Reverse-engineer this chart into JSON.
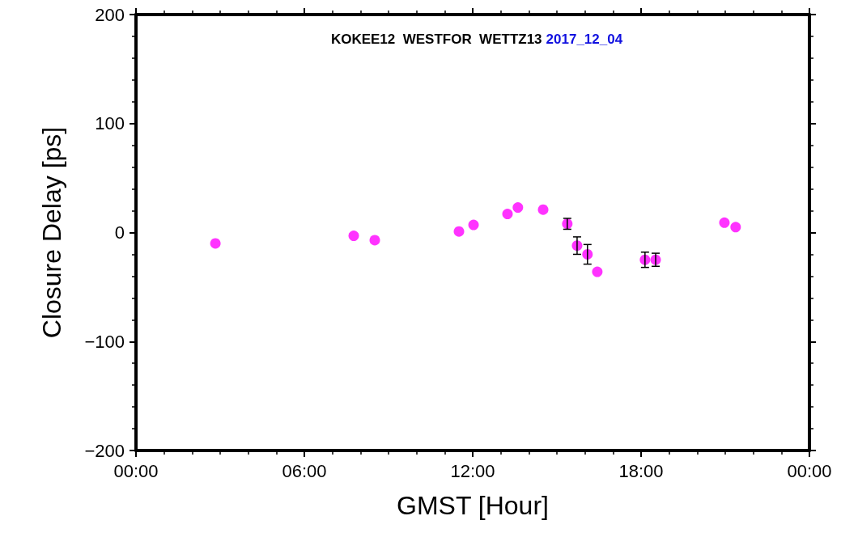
{
  "chart_data": {
    "type": "scatter",
    "title": "KOKEE12  WESTFOR  WETTZ13",
    "subtitle": "2017_12_04",
    "xlabel": "GMST [Hour]",
    "ylabel": "Closure Delay [ps]",
    "x": [
      2.83,
      7.76,
      8.51,
      11.51,
      12.03,
      13.24,
      13.61,
      14.51,
      15.37,
      15.72,
      16.09,
      16.44,
      18.14,
      18.52,
      20.97,
      21.37
    ],
    "series": [
      {
        "color": "#ff00ff",
        "values": [
          -10,
          -3,
          -7,
          1,
          7,
          17,
          23,
          21,
          8,
          -12,
          -20,
          -36,
          -25,
          -25,
          9,
          5
        ],
        "errors": [
          null,
          null,
          null,
          null,
          null,
          null,
          null,
          null,
          5,
          8,
          9,
          null,
          7,
          6,
          null,
          null
        ]
      }
    ],
    "xlim": [
      0,
      24
    ],
    "xticks": [
      {
        "value": 0,
        "label": "00:00"
      },
      {
        "value": 6,
        "label": "06:00"
      },
      {
        "value": 12,
        "label": "12:00"
      },
      {
        "value": 18,
        "label": "18:00"
      },
      {
        "value": 24,
        "label": "00:00"
      }
    ],
    "ylim": [
      -200,
      200
    ],
    "yticks": [
      {
        "value": -200,
        "label": "−200"
      },
      {
        "value": -100,
        "label": "−100"
      },
      0,
      100,
      200
    ],
    "marker": "circle",
    "grid": false
  }
}
